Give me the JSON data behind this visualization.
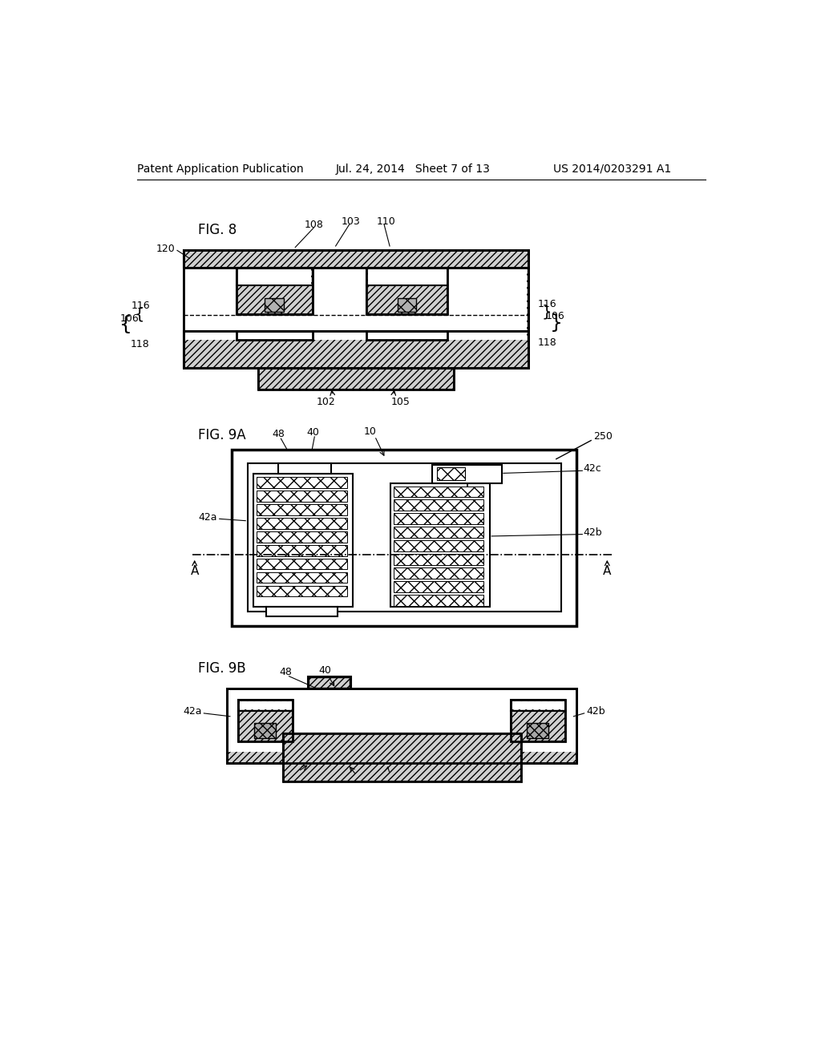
{
  "bg_color": "#ffffff",
  "header_left": "Patent Application Publication",
  "header_mid": "Jul. 24, 2014   Sheet 7 of 13",
  "header_right": "US 2014/0203291 A1"
}
